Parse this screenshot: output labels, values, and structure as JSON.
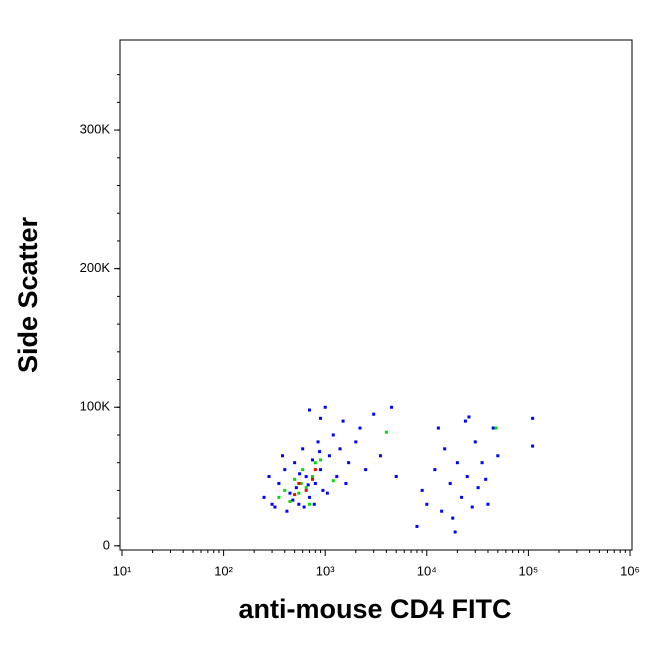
{
  "chart_data": {
    "type": "scatter",
    "xlabel": "anti-mouse CD4 FITC",
    "ylabel": "Side Scatter",
    "xscale": "log",
    "xlim": [
      10,
      1000000
    ],
    "xticks": [
      {
        "value": 10,
        "label": "10¹"
      },
      {
        "value": 100,
        "label": "10²"
      },
      {
        "value": 1000,
        "label": "10³"
      },
      {
        "value": 10000,
        "label": "10⁴"
      },
      {
        "value": 100000,
        "label": "10⁵"
      },
      {
        "value": 1000000,
        "label": "10⁶"
      }
    ],
    "ylim": [
      -3000,
      365000
    ],
    "yticks": [
      0,
      {
        "value": 100000,
        "label": "100K"
      },
      {
        "value": 200000,
        "label": "200K"
      },
      {
        "value": 300000,
        "label": "300K"
      }
    ],
    "series": [
      {
        "color": "#0000ff",
        "x": [
          300,
          350,
          400,
          420,
          450,
          500,
          520,
          550,
          600,
          650,
          700,
          750,
          800,
          850,
          900,
          950,
          1000,
          1100,
          1200,
          1300,
          1400,
          1500,
          1700,
          2000,
          2500,
          3000,
          3500,
          4500,
          5000,
          250,
          280,
          320,
          380,
          480,
          560,
          620,
          680,
          780,
          880,
          1050,
          1600,
          2200,
          700,
          900,
          8000,
          9000,
          10000,
          12000,
          14000,
          15000,
          17000,
          18000,
          20000,
          22000,
          24000,
          25000,
          28000,
          30000,
          32000,
          35000,
          40000,
          45000,
          50000,
          110000,
          110000,
          13000,
          19000,
          26000,
          38000
        ],
        "values": [
          30000,
          45000,
          55000,
          25000,
          38000,
          60000,
          42000,
          30000,
          70000,
          50000,
          35000,
          62000,
          45000,
          75000,
          55000,
          40000,
          100000,
          65000,
          80000,
          50000,
          70000,
          90000,
          60000,
          75000,
          55000,
          95000,
          65000,
          100000,
          50000,
          35000,
          50000,
          28000,
          65000,
          33000,
          52000,
          28000,
          44000,
          30000,
          68000,
          38000,
          45000,
          85000,
          98000,
          92000,
          14000,
          40000,
          30000,
          55000,
          25000,
          70000,
          45000,
          20000,
          60000,
          35000,
          90000,
          50000,
          28000,
          75000,
          42000,
          60000,
          30000,
          85000,
          65000,
          92000,
          72000,
          85000,
          10000,
          93000,
          48000
        ]
      },
      {
        "color": "#00dd00",
        "x": [
          400,
          450,
          500,
          550,
          600,
          650,
          700,
          750,
          800,
          350,
          580,
          900,
          4000,
          48000,
          1200
        ],
        "values": [
          40000,
          32000,
          48000,
          38000,
          55000,
          42000,
          30000,
          50000,
          60000,
          35000,
          45000,
          62000,
          82000,
          85000,
          47000
        ]
      },
      {
        "color": "#ff0000",
        "x": [
          550,
          650,
          750,
          500,
          800
        ],
        "values": [
          45000,
          40000,
          48000,
          37000,
          55000
        ]
      }
    ]
  }
}
